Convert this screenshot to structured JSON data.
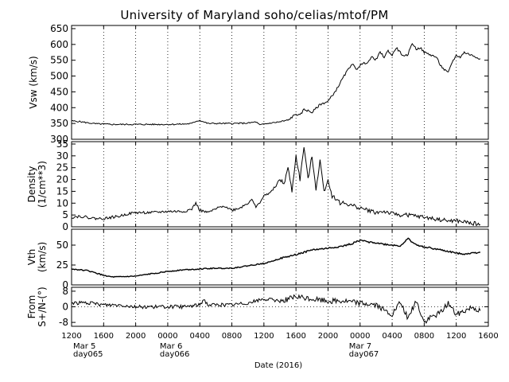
{
  "title": "University of Maryland  soho/celias/mtof/PM",
  "xlabel": "Date (2016)",
  "x_tick_labels": [
    "1200",
    "1600",
    "2000",
    "0000",
    "0400",
    "0800",
    "1200",
    "1600",
    "2000",
    "0000",
    "0400",
    "0800",
    "1200",
    "1600"
  ],
  "date_annotations": [
    {
      "date": "Mar 5",
      "day": "day065"
    },
    {
      "date": "Mar 6",
      "day": "day066"
    },
    {
      "date": "Mar 7",
      "day": "day067"
    }
  ],
  "chart_data": [
    {
      "type": "line",
      "ylabel": "Vsw (km/s)",
      "ylim": [
        300,
        660
      ],
      "yticks": [
        300,
        350,
        400,
        450,
        500,
        550,
        600,
        650
      ],
      "xlim_hours": [
        0,
        52
      ],
      "x_hours": [
        0,
        1,
        2,
        3,
        4,
        5,
        6,
        8,
        10,
        12,
        14,
        15,
        15.5,
        16,
        17,
        18,
        20,
        22,
        23,
        23.5,
        24,
        25,
        26,
        27,
        28,
        28.5,
        29,
        30,
        31,
        32,
        33,
        34,
        35,
        35.5,
        36,
        37,
        37.5,
        38,
        38.5,
        39,
        39.5,
        40,
        40.5,
        41,
        41.5,
        42,
        42.5,
        43,
        43.5,
        44,
        44.5,
        45,
        45.5,
        46,
        46.5,
        47,
        47.5,
        48,
        48.5,
        49,
        49.5,
        50,
        50.5,
        51
      ],
      "values": [
        358,
        356,
        352,
        349,
        348,
        347,
        347,
        347,
        347,
        347,
        348,
        350,
        357,
        360,
        350,
        350,
        350,
        351,
        355,
        345,
        348,
        352,
        355,
        360,
        380,
        375,
        395,
        385,
        410,
        420,
        455,
        500,
        540,
        520,
        535,
        545,
        560,
        552,
        575,
        560,
        580,
        565,
        590,
        575,
        560,
        570,
        605,
        585,
        590,
        575,
        570,
        565,
        560,
        535,
        520,
        510,
        545,
        565,
        560,
        575,
        570,
        565,
        560,
        555
      ]
    },
    {
      "type": "line",
      "ylabel": "Density (1/cm**3)",
      "ylim": [
        0,
        36
      ],
      "yticks": [
        0,
        5,
        10,
        15,
        20,
        25,
        30,
        35
      ],
      "xlim_hours": [
        0,
        52
      ],
      "x_hours": [
        0,
        1,
        2,
        3,
        4,
        5,
        6,
        7,
        8,
        10,
        12,
        14,
        15,
        15.5,
        16,
        17,
        18,
        19,
        20,
        21,
        22,
        22.5,
        23,
        24,
        25,
        26,
        26.5,
        27,
        27.5,
        28,
        28.5,
        29,
        29.5,
        30,
        30.5,
        31,
        31.5,
        32,
        32.5,
        33,
        33.5,
        34,
        35,
        36,
        37,
        38,
        39,
        40,
        41,
        42,
        43,
        44,
        45,
        46,
        47,
        48,
        49,
        50,
        51
      ],
      "values": [
        4,
        4.5,
        4,
        3.5,
        3.5,
        4,
        4.5,
        5.5,
        6,
        6,
        6.5,
        6.5,
        7.5,
        10,
        7,
        6,
        7.5,
        9,
        7,
        8,
        10,
        12,
        8,
        13,
        15,
        20,
        18,
        25,
        15,
        30,
        20,
        34,
        20,
        30,
        16,
        28,
        15,
        20,
        13,
        12,
        10,
        10,
        9,
        8,
        7,
        6,
        6.5,
        5.5,
        5,
        5,
        4.5,
        4,
        3.5,
        3,
        2.5,
        2.5,
        2,
        1.5,
        1
      ]
    },
    {
      "type": "line",
      "ylabel": "Vth (km/s)",
      "ylim": [
        0,
        70
      ],
      "yticks": [
        0,
        25,
        50
      ],
      "xlim_hours": [
        0,
        52
      ],
      "x_hours": [
        0,
        1,
        2,
        3,
        4,
        5,
        6,
        8,
        10,
        12,
        14,
        16,
        18,
        20,
        22,
        24,
        26,
        28,
        30,
        32,
        34,
        35,
        36,
        37,
        38,
        39,
        40,
        41,
        42,
        43,
        44,
        45,
        46,
        47,
        48,
        49,
        50,
        51
      ],
      "values": [
        20,
        19,
        18,
        15,
        12,
        10,
        10,
        11,
        14,
        17,
        19,
        20,
        21,
        21,
        24,
        27,
        33,
        38,
        44,
        46,
        49,
        52,
        56,
        54,
        53,
        51,
        50,
        49,
        58,
        50,
        48,
        46,
        44,
        42,
        40,
        39,
        40,
        41
      ]
    },
    {
      "type": "line",
      "ylabel": "From S+/N-(°)",
      "ylim": [
        -10,
        10
      ],
      "yticks": [
        -8,
        0,
        8
      ],
      "xlim_hours": [
        0,
        52
      ],
      "x_hours": [
        0,
        2,
        4,
        6,
        8,
        10,
        12,
        14,
        16,
        16.5,
        17,
        18,
        20,
        22,
        24,
        26,
        28,
        30,
        32,
        34,
        36,
        38,
        39,
        40,
        41,
        42,
        43,
        44,
        45,
        46,
        47,
        48,
        49,
        50,
        51
      ],
      "values": [
        2,
        2,
        1,
        1,
        0,
        0,
        0,
        0,
        1,
        4,
        1,
        1,
        1,
        2,
        4,
        3,
        5,
        4,
        3,
        3,
        2,
        1,
        -2,
        -4,
        2,
        -6,
        3,
        -8,
        -5,
        -3,
        2,
        -4,
        -2,
        0,
        -2
      ]
    }
  ]
}
